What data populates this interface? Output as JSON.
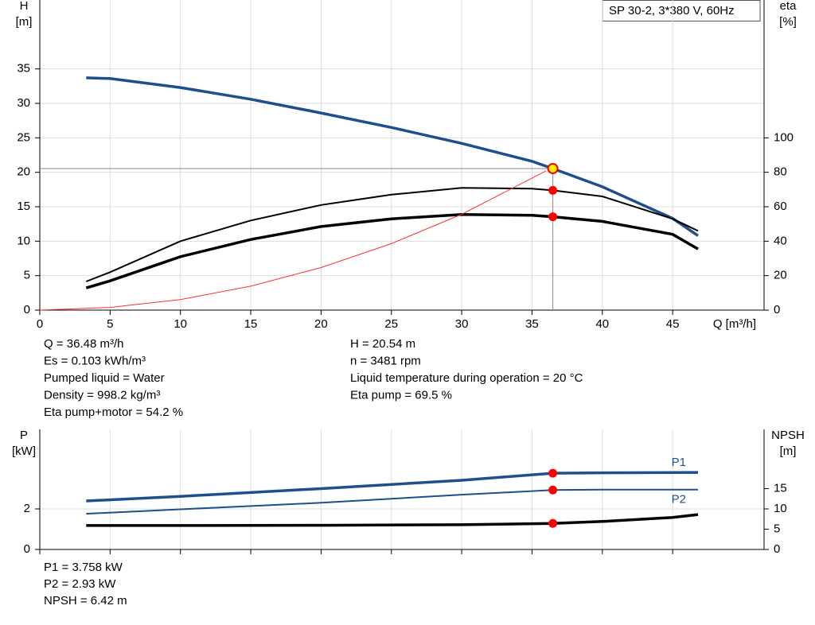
{
  "legend_box": "SP 30-2, 3*380 V, 60Hz",
  "info_top_left": [
    "Q = 36.48 m³/h",
    "Es = 0.103 kWh/m³",
    "Pumped liquid = Water",
    "Density = 998.2 kg/m³",
    "Eta pump+motor = 54.2 %"
  ],
  "info_top_right": [
    "H = 20.54 m",
    "n = 3481 rpm",
    "Liquid temperature during operation = 20 °C",
    "Eta pump = 69.5 %"
  ],
  "info_bottom": [
    "P1 = 3.758 kW",
    "P2 = 2.93 kW",
    "NPSH = 6.42 m"
  ],
  "chart_data": [
    {
      "type": "line",
      "x_label": "Q [m³/h]",
      "y_label": "H",
      "y_unit": "[m]",
      "y2_label": "eta",
      "y2_unit": "[%]",
      "xlim": [
        0,
        51.5
      ],
      "xticks": [
        0,
        5,
        10,
        15,
        20,
        25,
        30,
        35,
        40,
        45
      ],
      "ylim": [
        0,
        45
      ],
      "yticks": [
        0,
        5,
        10,
        15,
        20,
        25,
        30,
        35
      ],
      "y2lim": [
        0,
        180
      ],
      "y2ticks": [
        0,
        20,
        40,
        60,
        80,
        100
      ],
      "grid": true,
      "operating_point": {
        "x": 36.48,
        "y": 20.54,
        "color": "#ffee00"
      },
      "series": [
        {
          "x": [
            3.3,
            5,
            10,
            15,
            20,
            25,
            30,
            35,
            36.48,
            40,
            45,
            46.8
          ],
          "values": [
            33.7,
            33.6,
            32.3,
            30.6,
            28.6,
            26.5,
            24.2,
            21.6,
            20.54,
            17.9,
            13.3,
            10.8
          ],
          "color": "#1f4e8c",
          "width": 3.5
        },
        {
          "x": [
            3.3,
            5,
            10,
            15,
            20,
            25,
            30,
            35,
            36.48,
            40,
            45,
            46.8
          ],
          "values": [
            16.6,
            22,
            40,
            52,
            61,
            67,
            71,
            70.5,
            69.5,
            66,
            53,
            46
          ],
          "color": "#000000",
          "width": 2,
          "axis": "y2",
          "marker_color": "#ff0000"
        },
        {
          "x": [
            3.3,
            5,
            10,
            15,
            20,
            25,
            30,
            35,
            36.48,
            40,
            45,
            46.8
          ],
          "values": [
            12.9,
            17,
            31,
            41,
            48.5,
            53,
            55.5,
            55,
            54.2,
            51.5,
            44,
            35.5
          ],
          "color": "#000000",
          "width": 3.5,
          "axis": "y2",
          "marker_color": "#ff0000"
        },
        {
          "x": [
            0,
            5,
            10,
            15,
            20,
            25,
            30,
            36
          ],
          "values": [
            0,
            0.39,
            1.54,
            3.47,
            6.17,
            9.65,
            13.9,
            20.2
          ],
          "color": "#ff3030",
          "width": 1
        }
      ]
    },
    {
      "type": "line",
      "xlim": [
        0,
        51.5
      ],
      "xticks": [
        0,
        5,
        10,
        15,
        20,
        25,
        30,
        35,
        40,
        45
      ],
      "y_label": "P",
      "y_unit": "[kW]",
      "y2_label": "NPSH",
      "y2_unit": "[m]",
      "ylim": [
        0,
        5.92
      ],
      "yticks": [
        0,
        2
      ],
      "y2lim": [
        0,
        29.6
      ],
      "y2ticks": [
        0,
        5,
        10,
        15
      ],
      "grid": true,
      "operating_point": {
        "x": 36.48
      },
      "series": [
        {
          "name": "P1",
          "x": [
            3.3,
            10,
            20,
            30,
            36.48,
            40,
            46.8
          ],
          "values": [
            2.39,
            2.62,
            3.0,
            3.41,
            3.758,
            3.78,
            3.8
          ],
          "color": "#1f4e8c",
          "width": 3.5,
          "marker_color": "#ff0000"
        },
        {
          "name": "P2",
          "x": [
            3.3,
            10,
            20,
            30,
            36.48,
            40,
            46.8
          ],
          "values": [
            1.76,
            1.98,
            2.3,
            2.7,
            2.93,
            2.95,
            2.95
          ],
          "color": "#1f4e8c",
          "width": 2,
          "marker_color": "#ff0000"
        },
        {
          "x": [
            3.3,
            10,
            20,
            30,
            36.48,
            40,
            45,
            46.8
          ],
          "values": [
            5.9,
            5.9,
            5.95,
            6.1,
            6.42,
            6.9,
            7.9,
            8.6
          ],
          "color": "#000000",
          "width": 3.5,
          "axis": "y2",
          "marker_color": "#ff0000"
        }
      ]
    }
  ]
}
